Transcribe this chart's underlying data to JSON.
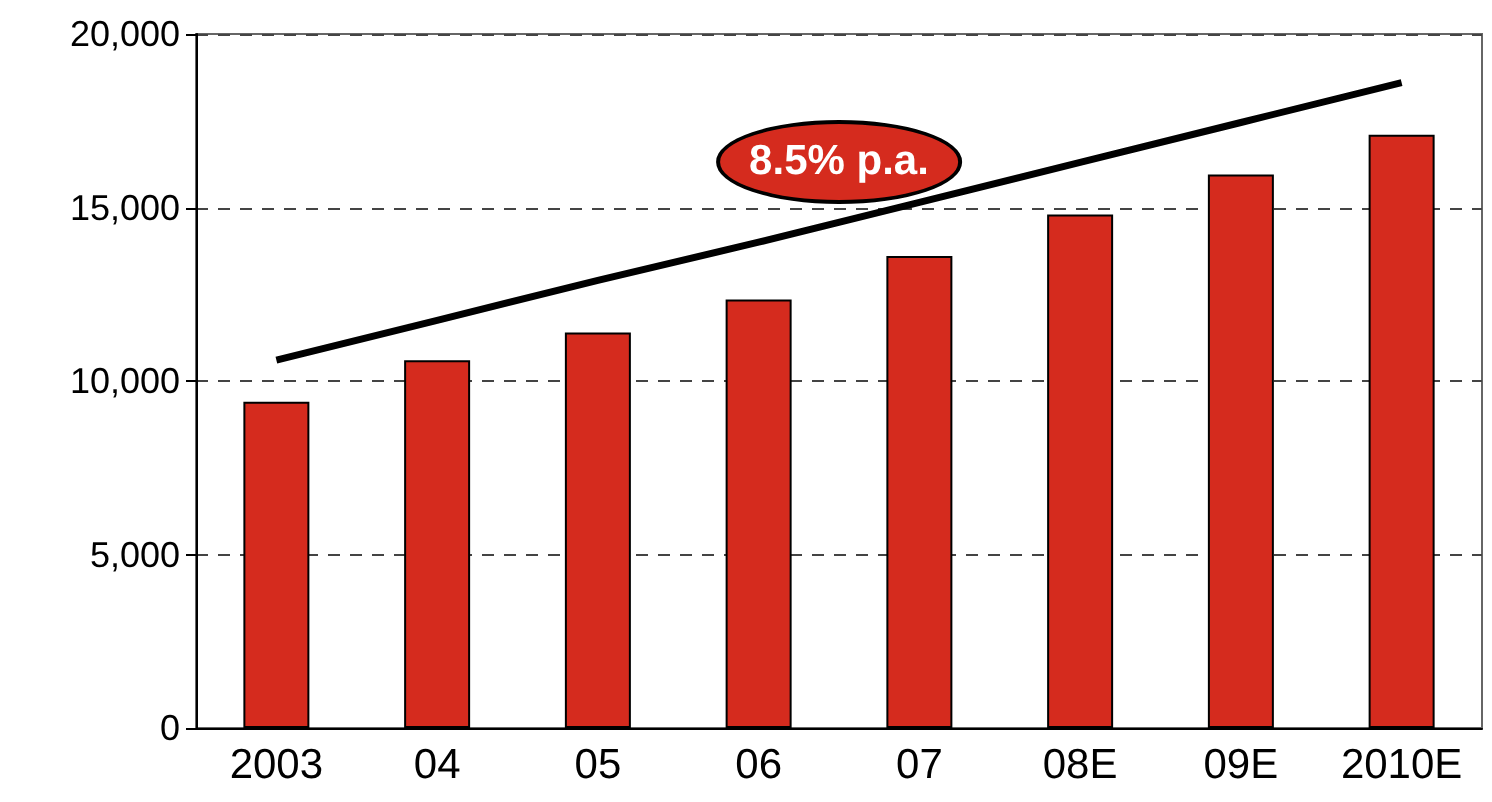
{
  "chart_data": {
    "type": "bar",
    "categories": [
      "2003",
      "04",
      "05",
      "06",
      "07",
      "08E",
      "09E",
      "2010E"
    ],
    "series": [
      {
        "color": "#d52b1e",
        "values": [
          9400,
          10600,
          11400,
          12350,
          13600,
          14800,
          15950,
          17100
        ]
      },
      {
        "type": "line",
        "color": "#000000",
        "values": [
          10600,
          11750,
          12900,
          14000,
          15150,
          16300,
          17450,
          18600
        ],
        "marker": "none",
        "line_style": "solid"
      }
    ],
    "ylim": [
      0,
      20000
    ],
    "yticks": [
      0,
      {
        "value": 5000,
        "label": "5,000"
      },
      {
        "value": 10000,
        "label": "10,000"
      },
      {
        "value": 15000,
        "label": "15,000"
      },
      {
        "value": 20000,
        "label": "20,000"
      }
    ],
    "grid": "y",
    "annotations": [
      "8.5% p.a."
    ]
  }
}
